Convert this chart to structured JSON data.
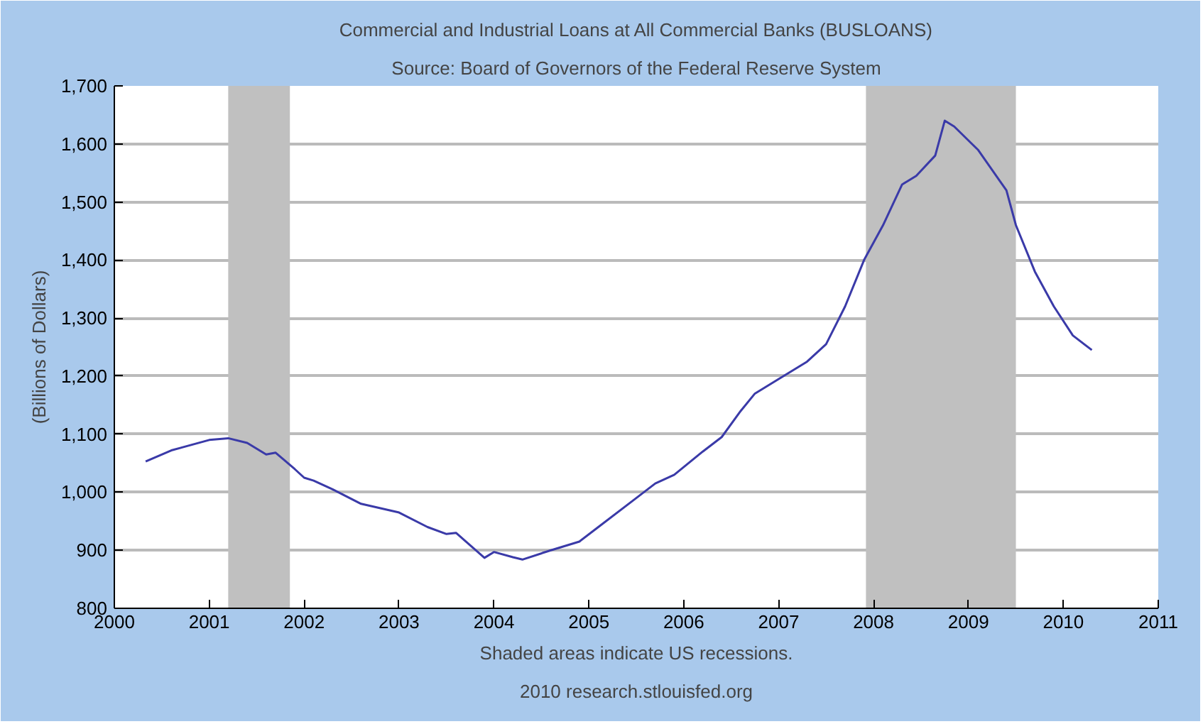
{
  "chart_data": {
    "type": "line",
    "title": "Commercial and Industrial Loans at All Commercial Banks (BUSLOANS)",
    "subtitle": "Source: Board of Governors of the Federal Reserve System",
    "ylabel": "(Billions of Dollars)",
    "annotations": [
      "Shaded areas indicate US recessions.",
      "2010 research.stlouisfed.org"
    ],
    "xlim": [
      2000,
      2011
    ],
    "xticks": [
      2000,
      2001,
      2002,
      2003,
      2004,
      2005,
      2006,
      2007,
      2008,
      2009,
      2010,
      2011
    ],
    "ylim": [
      800,
      1700
    ],
    "yticks": [
      {
        "value": 800,
        "label": "800"
      },
      {
        "value": 900,
        "label": "900"
      },
      {
        "value": 1000,
        "label": "1,000"
      },
      {
        "value": 1100,
        "label": "1,100"
      },
      {
        "value": 1200,
        "label": "1,200"
      },
      {
        "value": 1300,
        "label": "1,300"
      },
      {
        "value": 1400,
        "label": "1,400"
      },
      {
        "value": 1500,
        "label": "1,500"
      },
      {
        "value": 1600,
        "label": "1,600"
      },
      {
        "value": 1700,
        "label": "1,700"
      }
    ],
    "grid": "y",
    "bands": [
      {
        "axis": "x",
        "from": 2001.2,
        "to": 2001.85,
        "color": "#c0c0c0"
      },
      {
        "axis": "x",
        "from": 2007.92,
        "to": 2009.5,
        "color": "#c0c0c0"
      }
    ],
    "x": [
      2000.33,
      2000.6,
      2001.0,
      2001.2,
      2001.4,
      2001.6,
      2001.7,
      2001.9,
      2002.0,
      2002.1,
      2002.3,
      2002.6,
      2003.0,
      2003.3,
      2003.5,
      2003.6,
      2003.9,
      2004.0,
      2004.2,
      2004.3,
      2004.6,
      2004.9,
      2005.1,
      2005.5,
      2005.7,
      2005.9,
      2006.2,
      2006.4,
      2006.6,
      2006.75,
      2007.0,
      2007.3,
      2007.5,
      2007.7,
      2007.9,
      2008.1,
      2008.3,
      2008.45,
      2008.65,
      2008.75,
      2008.85,
      2009.1,
      2009.4,
      2009.5,
      2009.7,
      2009.9,
      2010.1,
      2010.3
    ],
    "series": [
      {
        "color": "#3a3aa8",
        "values": [
          1053,
          1072,
          1090,
          1093,
          1085,
          1065,
          1068,
          1040,
          1025,
          1020,
          1005,
          980,
          965,
          940,
          928,
          930,
          887,
          897,
          888,
          884,
          900,
          915,
          940,
          990,
          1015,
          1030,
          1070,
          1095,
          1140,
          1170,
          1195,
          1225,
          1255,
          1320,
          1400,
          1460,
          1530,
          1545,
          1580,
          1640,
          1630,
          1590,
          1520,
          1460,
          1380,
          1320,
          1270,
          1245
        ]
      }
    ]
  }
}
